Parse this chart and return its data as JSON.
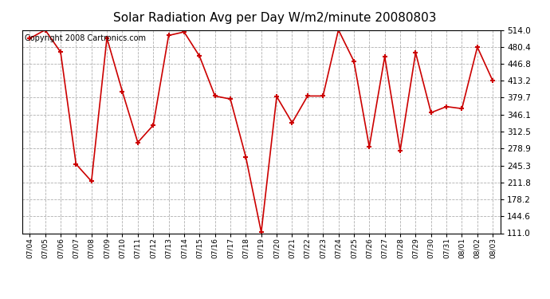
{
  "title": "Solar Radiation Avg per Day W/m2/minute 20080803",
  "copyright": "Copyright 2008 Cartronics.com",
  "dates": [
    "07/04",
    "07/05",
    "07/06",
    "07/07",
    "07/08",
    "07/09",
    "07/10",
    "07/11",
    "07/12",
    "07/13",
    "07/14",
    "07/15",
    "07/16",
    "07/17",
    "07/18",
    "07/19",
    "07/20",
    "07/21",
    "07/22",
    "07/23",
    "07/24",
    "07/25",
    "07/26",
    "07/27",
    "07/28",
    "07/29",
    "07/30",
    "07/31",
    "08/01",
    "08/02",
    "08/03"
  ],
  "values": [
    497,
    514,
    470,
    248,
    214,
    498,
    392,
    291,
    325,
    503,
    510,
    462,
    383,
    377,
    262,
    113,
    382,
    330,
    383,
    383,
    514,
    452,
    282,
    461,
    275,
    469,
    350,
    362,
    358,
    480,
    413
  ],
  "line_color": "#cc0000",
  "marker_color": "#cc0000",
  "bg_color": "#ffffff",
  "grid_color": "#b0b0b0",
  "ylim": [
    111.0,
    514.0
  ],
  "yticks": [
    111.0,
    144.6,
    178.2,
    211.8,
    245.3,
    278.9,
    312.5,
    346.1,
    379.7,
    413.2,
    446.8,
    480.4,
    514.0
  ],
  "title_fontsize": 11,
  "copyright_fontsize": 7,
  "tick_fontsize": 7.5,
  "xtick_fontsize": 6.5
}
